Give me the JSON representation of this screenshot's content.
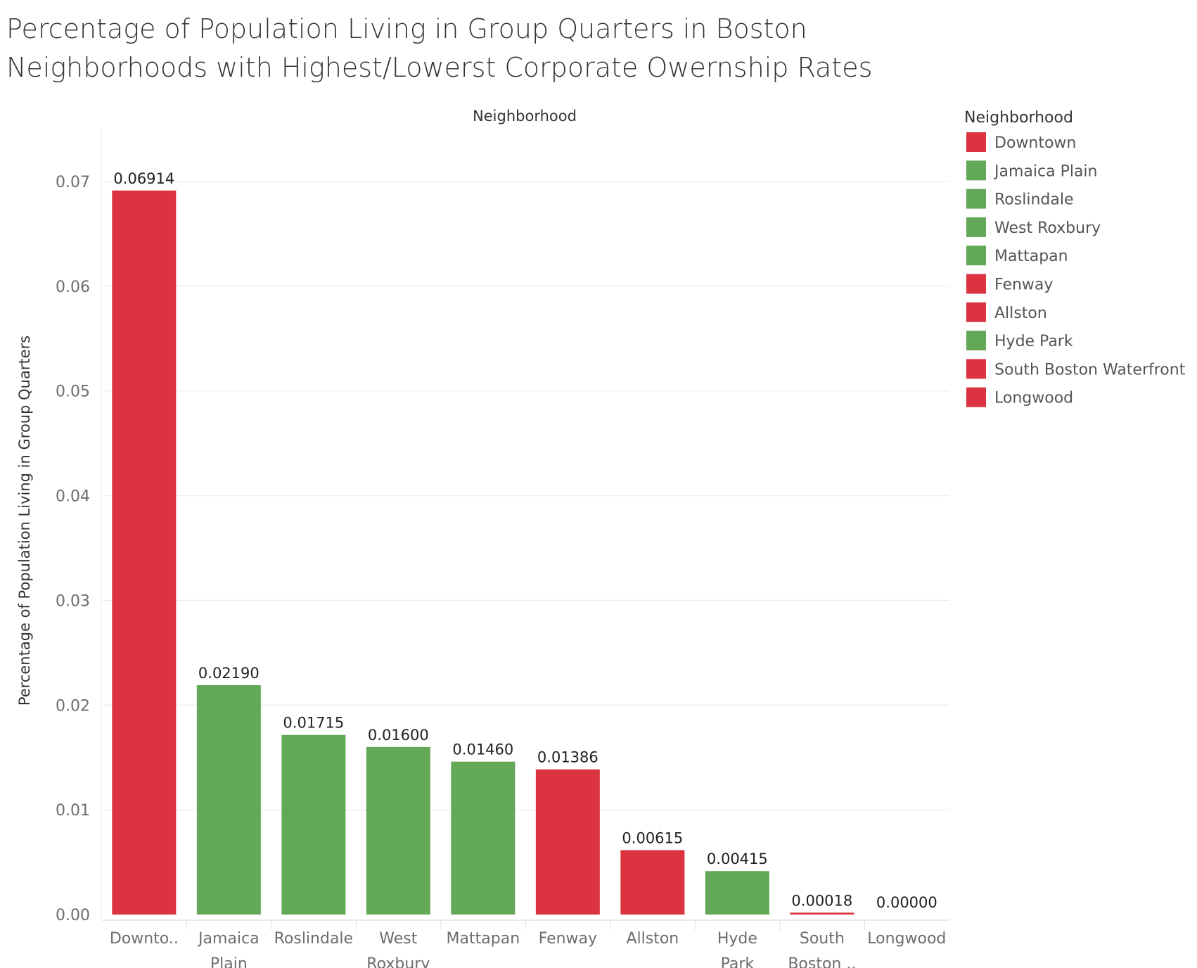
{
  "chart_data": {
    "type": "bar",
    "title_lines": [
      "Percentage of Population Living in Group Quarters in Boston",
      "Neighborhoods with Highest/Lowerst Corporate Owernship Rates"
    ],
    "column_header": "Neighborhood",
    "ylabel": "Percentage of Population Living in Group Quarters",
    "ylim": [
      0,
      0.075
    ],
    "yticks": [
      "0.00",
      "0.01",
      "0.02",
      "0.03",
      "0.04",
      "0.05",
      "0.06",
      "0.07"
    ],
    "ytick_values": [
      0,
      0.01,
      0.02,
      0.03,
      0.04,
      0.05,
      0.06,
      0.07
    ],
    "grid": true,
    "categories": [
      "Downtown",
      "Jamaica Plain",
      "Roslindale",
      "West Roxbury",
      "Mattapan",
      "Fenway",
      "Allston",
      "Hyde Park",
      "South Boston Waterfront",
      "Longwood"
    ],
    "tick_labels": [
      [
        "Downto.."
      ],
      [
        "Jamaica",
        "Plain"
      ],
      [
        "Roslindale"
      ],
      [
        "West",
        "Roxbury"
      ],
      [
        "Mattapan"
      ],
      [
        "Fenway"
      ],
      [
        "Allston"
      ],
      [
        "Hyde",
        "Park"
      ],
      [
        "South",
        "Boston .."
      ],
      [
        "Longwood"
      ]
    ],
    "values": [
      0.06914,
      0.0219,
      0.01715,
      0.016,
      0.0146,
      0.01386,
      0.00615,
      0.00415,
      0.00018,
      0.0
    ],
    "value_labels": [
      "0.06914",
      "0.02190",
      "0.01715",
      "0.01600",
      "0.01460",
      "0.01386",
      "0.00615",
      "0.00415",
      "0.00018",
      "0.00000"
    ],
    "groups": [
      "high",
      "low",
      "low",
      "low",
      "low",
      "high",
      "high",
      "low",
      "high",
      "high"
    ],
    "group_colors": {
      "high": "#db3340",
      "low": "#62a857"
    },
    "legend": {
      "title": "Neighborhood",
      "placement": "right",
      "entries": [
        "Downtown",
        "Jamaica Plain",
        "Roslindale",
        "West Roxbury",
        "Mattapan",
        "Fenway",
        "Allston",
        "Hyde Park",
        "South Boston Waterfront",
        "Longwood"
      ]
    }
  }
}
